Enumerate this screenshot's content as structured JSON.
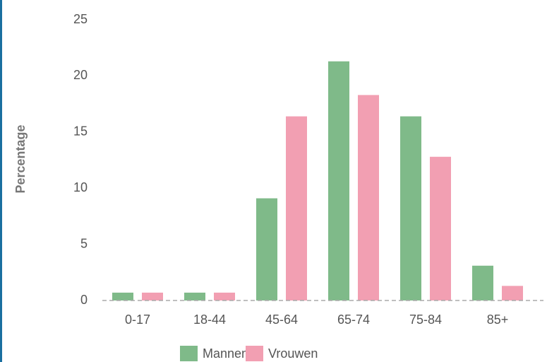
{
  "chart_data": {
    "type": "bar",
    "y_label": "Percentage",
    "categories": [
      "0-17",
      "18-44",
      "45-64",
      "65-74",
      "75-84",
      "85+"
    ],
    "series": [
      {
        "name": "Mannen",
        "color": "#7fba89",
        "values": [
          0.7,
          0.7,
          9.1,
          21.3,
          16.4,
          3.1
        ]
      },
      {
        "name": "Vrouwen",
        "color": "#f29fb2",
        "values": [
          0.7,
          0.7,
          16.4,
          18.3,
          12.8,
          1.3
        ]
      }
    ],
    "ylim": [
      0,
      25
    ],
    "yticks": [
      0,
      5,
      10,
      15,
      20,
      25
    ],
    "grid": false
  }
}
